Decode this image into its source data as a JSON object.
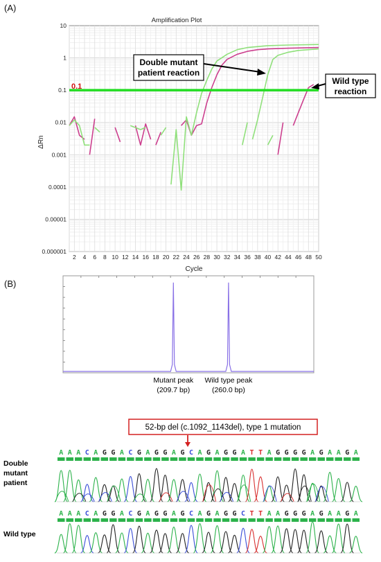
{
  "figure": {
    "panel_a_label": "(A)",
    "panel_b_label": "(B)"
  },
  "chart_data": [
    {
      "type": "line",
      "title": "Amplification Plot",
      "xlabel": "Cycle",
      "ylabel": "ΔRn",
      "x_ticks": [
        2,
        4,
        6,
        8,
        10,
        12,
        14,
        16,
        18,
        20,
        22,
        24,
        26,
        28,
        30,
        32,
        34,
        36,
        38,
        40,
        42,
        44,
        46,
        48,
        50
      ],
      "y_scale": "log",
      "y_ticks": [
        "10",
        "1",
        "0.1",
        "0.01",
        "0.001",
        "0.0001",
        "0.00001",
        "0.000001"
      ],
      "xlim": [
        1,
        50
      ],
      "ylim": [
        1e-06,
        10
      ],
      "grid": true,
      "threshold": {
        "value": 0.1,
        "label": "0.1",
        "color": "#22dd22"
      },
      "annotations": [
        {
          "text_lines": [
            "Double mutant",
            "patient reaction"
          ]
        },
        {
          "text_lines": [
            "Wild type",
            "reaction"
          ]
        }
      ],
      "series": [
        {
          "color": "#cc3f8e",
          "segments": [
            [
              [
                1,
                0.008
              ],
              [
                2,
                0.015
              ],
              [
                3,
                0.004
              ],
              [
                4,
                0.003
              ]
            ],
            [
              [
                5,
                0.001
              ],
              [
                6,
                0.013
              ]
            ],
            [
              [
                10,
                0.007
              ],
              [
                11,
                0.0025
              ]
            ],
            [
              [
                14,
                0.008
              ],
              [
                15,
                0.002
              ],
              [
                16,
                0.009
              ],
              [
                17,
                0.003
              ]
            ],
            [
              [
                18,
                0.002
              ],
              [
                19,
                0.005
              ]
            ],
            [
              [
                23,
                0.008
              ],
              [
                24,
                0.012
              ],
              [
                25,
                0.004
              ],
              [
                26,
                0.008
              ],
              [
                27,
                0.009
              ],
              [
                28,
                0.04
              ],
              [
                29,
                0.12
              ],
              [
                30,
                0.3
              ],
              [
                31,
                0.6
              ],
              [
                32,
                0.9
              ],
              [
                34,
                1.3
              ],
              [
                36,
                1.6
              ],
              [
                38,
                1.8
              ],
              [
                40,
                1.9
              ],
              [
                44,
                2.0
              ],
              [
                50,
                2.1
              ]
            ],
            [
              [
                42,
                0.001
              ],
              [
                43,
                0.01
              ]
            ],
            [
              [
                45,
                0.008
              ],
              [
                46,
                0.02
              ],
              [
                47,
                0.05
              ],
              [
                48,
                0.12
              ],
              [
                49,
                0.15
              ]
            ]
          ]
        },
        {
          "color": "#8fe07a",
          "segments": [
            [
              [
                1,
                0.008
              ],
              [
                2,
                0.012
              ],
              [
                3,
                0.008
              ],
              [
                4,
                0.002
              ],
              [
                5,
                0.002
              ]
            ],
            [
              [
                6,
                0.007
              ],
              [
                7,
                0.005
              ]
            ],
            [
              [
                13,
                0.008
              ],
              [
                15,
                0.006
              ],
              [
                16,
                0.007
              ]
            ],
            [
              [
                19,
                0.004
              ],
              [
                20,
                0.007
              ]
            ],
            [
              [
                21,
                0.00012
              ],
              [
                22,
                0.006
              ],
              [
                23,
                8e-05
              ],
              [
                24,
                0.015
              ],
              [
                25,
                0.004
              ],
              [
                26,
                0.02
              ],
              [
                27,
                0.08
              ],
              [
                28,
                0.2
              ],
              [
                29,
                0.45
              ],
              [
                30,
                0.8
              ],
              [
                32,
                1.3
              ],
              [
                34,
                1.8
              ],
              [
                36,
                2.1
              ],
              [
                40,
                2.4
              ],
              [
                44,
                2.5
              ],
              [
                50,
                2.6
              ]
            ],
            [
              [
                35,
                0.002
              ],
              [
                36,
                0.01
              ]
            ],
            [
              [
                37,
                0.003
              ],
              [
                38,
                0.012
              ],
              [
                39,
                0.06
              ],
              [
                40,
                0.3
              ],
              [
                41,
                0.9
              ],
              [
                42,
                1.2
              ],
              [
                44,
                1.5
              ],
              [
                46,
                1.7
              ],
              [
                48,
                1.8
              ],
              [
                50,
                1.9
              ]
            ],
            [
              [
                40,
                0.002
              ],
              [
                41,
                0.004
              ]
            ]
          ]
        }
      ]
    },
    {
      "type": "line",
      "peaks": [
        {
          "label": "Mutant peak",
          "size": "(209.7 bp)",
          "position_fraction": 0.44,
          "height_fraction": 0.93
        },
        {
          "label": "Wild type peak",
          "size": "(260.0 bp)",
          "position_fraction": 0.66,
          "height_fraction": 0.93
        }
      ],
      "color": "#8870e6"
    }
  ],
  "sequence": {
    "mutation_label": "52-bp del (c.1092_1143del), type 1 mutation",
    "rows": [
      {
        "label_lines": [
          "Double",
          "mutant",
          "patient"
        ],
        "bases": "AAACAGGACGAGGAGCAGAGGATTAGGGGAGAAGA"
      },
      {
        "label_lines": [
          "Wild type"
        ],
        "bases": "AAACAGGACGAGGAGCAGAGGCTTAAGGGAGAAGA"
      }
    ],
    "base_colors": {
      "A": "#2cb24b",
      "C": "#3a4ed8",
      "G": "#222222",
      "T": "#d83030"
    }
  }
}
